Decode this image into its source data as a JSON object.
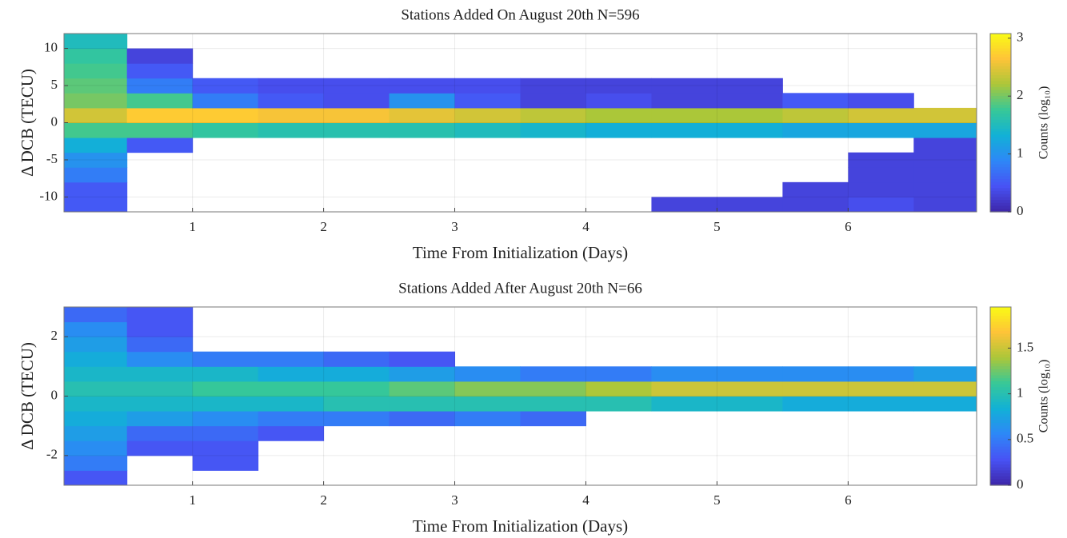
{
  "chart_data": [
    {
      "type": "heatmap",
      "title": "Stations Added On August 20th N=596",
      "x_label": "Time From Initialization (Days)",
      "y_label": "Δ DCB (TECU)",
      "colorbar_label": "Counts (log₁₀)",
      "colormap": "parula",
      "grid": true,
      "xlim": [
        0.02,
        6.98
      ],
      "xticks": [
        1,
        2,
        3,
        4,
        5,
        6
      ],
      "ylim": [
        -12,
        12
      ],
      "yticks": [
        -10,
        -5,
        0,
        5,
        10
      ],
      "clim": [
        0,
        3.08
      ],
      "cticks": [
        0,
        1,
        2,
        3
      ],
      "x_edges": [
        0,
        0.5,
        1,
        1.5,
        2,
        2.5,
        3,
        3.5,
        4,
        4.5,
        5,
        5.5,
        6,
        6.5,
        7
      ],
      "y_edges": [
        -12,
        -10,
        -8,
        -6,
        -4,
        -2,
        0,
        2,
        4,
        6,
        8,
        10,
        12
      ],
      "z": [
        [
          0.5,
          null,
          null,
          null,
          null,
          null,
          null,
          null,
          null,
          0.3,
          0.3,
          0.3,
          0.4,
          0.3
        ],
        [
          0.5,
          null,
          null,
          null,
          null,
          null,
          null,
          null,
          null,
          null,
          null,
          0.3,
          0.3,
          0.3
        ],
        [
          0.8,
          null,
          null,
          null,
          null,
          null,
          null,
          null,
          null,
          null,
          null,
          null,
          0.3,
          0.3
        ],
        [
          1.0,
          null,
          null,
          null,
          null,
          null,
          null,
          null,
          null,
          null,
          null,
          null,
          0.3,
          0.3
        ],
        [
          1.3,
          0.5,
          null,
          null,
          null,
          null,
          null,
          null,
          null,
          null,
          null,
          null,
          null,
          0.3
        ],
        [
          1.8,
          1.8,
          1.7,
          1.6,
          1.6,
          1.6,
          1.5,
          1.4,
          1.3,
          1.3,
          1.3,
          1.2,
          1.2,
          1.2
        ],
        [
          2.4,
          2.7,
          2.7,
          2.6,
          2.6,
          2.5,
          2.4,
          2.3,
          2.2,
          2.2,
          2.2,
          2.3,
          2.4,
          2.4
        ],
        [
          2.0,
          1.8,
          0.8,
          0.5,
          0.4,
          1.0,
          0.5,
          0.3,
          0.4,
          0.3,
          0.3,
          0.5,
          0.4,
          null
        ],
        [
          1.9,
          0.8,
          0.5,
          0.4,
          0.4,
          0.4,
          0.4,
          0.3,
          0.3,
          0.3,
          0.3,
          null,
          null,
          null
        ],
        [
          1.8,
          0.5,
          null,
          null,
          null,
          null,
          null,
          null,
          null,
          null,
          null,
          null,
          null,
          null
        ],
        [
          1.7,
          0.3,
          null,
          null,
          null,
          null,
          null,
          null,
          null,
          null,
          null,
          null,
          null,
          null
        ],
        [
          1.5,
          null,
          null,
          null,
          null,
          null,
          null,
          null,
          null,
          null,
          null,
          null,
          null,
          null
        ]
      ]
    },
    {
      "type": "heatmap",
      "title": "Stations Added After August 20th N=66",
      "x_label": "Time From Initialization (Days)",
      "y_label": "Δ DCB (TECU)",
      "colorbar_label": "Counts (log₁₀)",
      "colormap": "parula",
      "grid": true,
      "xlim": [
        0.02,
        6.98
      ],
      "xticks": [
        1,
        2,
        3,
        4,
        5,
        6
      ],
      "ylim": [
        -3,
        3
      ],
      "yticks": [
        -2,
        0,
        2
      ],
      "clim": [
        0,
        1.95
      ],
      "cticks": [
        0,
        0.5,
        1,
        1.5
      ],
      "x_edges": [
        0,
        0.5,
        1,
        1.5,
        2,
        2.5,
        3,
        3.5,
        4,
        4.5,
        5,
        5.5,
        6,
        6.5,
        7
      ],
      "y_edges": [
        -3,
        -2.5,
        -2,
        -1.5,
        -1,
        -0.5,
        0,
        0.5,
        1,
        1.5,
        2,
        2.5,
        3
      ],
      "z": [
        [
          0.3,
          null,
          null,
          null,
          null,
          null,
          null,
          null,
          null,
          null,
          null,
          null,
          null,
          null
        ],
        [
          0.5,
          null,
          0.3,
          null,
          null,
          null,
          null,
          null,
          null,
          null,
          null,
          null,
          null,
          null
        ],
        [
          0.6,
          0.3,
          0.3,
          null,
          null,
          null,
          null,
          null,
          null,
          null,
          null,
          null,
          null,
          null
        ],
        [
          0.7,
          0.4,
          0.4,
          0.3,
          null,
          null,
          null,
          null,
          null,
          null,
          null,
          null,
          null,
          null
        ],
        [
          0.8,
          0.7,
          0.6,
          0.5,
          0.5,
          0.4,
          0.5,
          0.4,
          null,
          null,
          null,
          null,
          null,
          null
        ],
        [
          0.9,
          0.9,
          0.9,
          0.9,
          1.0,
          1.0,
          1.0,
          1.0,
          1.0,
          0.9,
          0.9,
          0.8,
          0.8,
          0.8
        ],
        [
          1.0,
          1.0,
          1.1,
          1.1,
          1.1,
          1.2,
          1.3,
          1.3,
          1.4,
          1.5,
          1.5,
          1.5,
          1.5,
          1.5
        ],
        [
          0.9,
          0.9,
          0.9,
          0.8,
          0.8,
          0.7,
          0.6,
          0.5,
          0.5,
          0.6,
          0.6,
          0.6,
          0.6,
          0.7
        ],
        [
          0.8,
          0.6,
          0.5,
          0.5,
          0.4,
          0.3,
          null,
          null,
          null,
          null,
          null,
          null,
          null,
          null
        ],
        [
          0.7,
          0.4,
          null,
          null,
          null,
          null,
          null,
          null,
          null,
          null,
          null,
          null,
          null,
          null
        ],
        [
          0.6,
          0.3,
          null,
          null,
          null,
          null,
          null,
          null,
          null,
          null,
          null,
          null,
          null,
          null
        ],
        [
          0.4,
          0.3,
          null,
          null,
          null,
          null,
          null,
          null,
          null,
          null,
          null,
          null,
          null,
          null
        ]
      ]
    }
  ]
}
